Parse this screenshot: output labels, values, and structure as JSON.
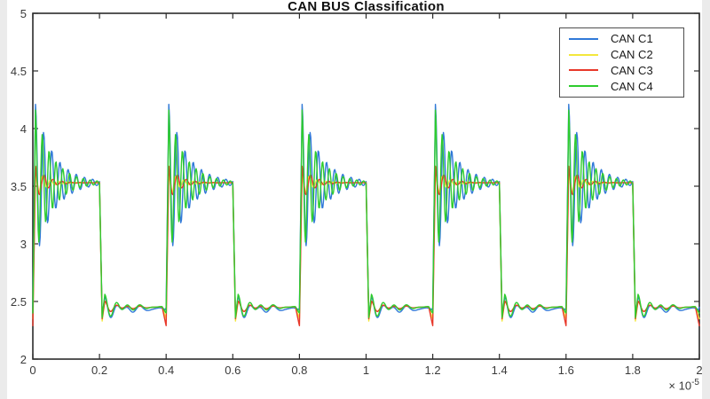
{
  "window": {
    "background": "#ffffff",
    "edge_strip_color": "#ebebeb"
  },
  "chart_data": {
    "type": "line",
    "title": "CAN BUS Classification",
    "axis_color": "#2b2b2b",
    "grid": false,
    "legend_position": "top-right",
    "x_axis": {
      "range": [
        0,
        2
      ],
      "unit": "seconds",
      "ticks": [
        "0",
        "0.2",
        "0.4",
        "0.6",
        "0.8",
        "1",
        "1.2",
        "1.4",
        "1.6",
        "1.8",
        "2"
      ],
      "tick_values": [
        0,
        0.2,
        0.4,
        0.6,
        0.8,
        1,
        1.2,
        1.4,
        1.6,
        1.8,
        2
      ],
      "unit_multiplier": {
        "times_base": "× 10",
        "exponent": "-5"
      }
    },
    "y_axis": {
      "range": [
        2,
        5
      ],
      "ticks": [
        "5",
        "4.5",
        "4",
        "3.5",
        "3",
        "2.5",
        "2"
      ],
      "tick_values": [
        5,
        4.5,
        4,
        3.5,
        3,
        2.5,
        2
      ]
    },
    "signal_model": {
      "description": "Square-wave CAN bus signal with under-damped ringing after each rising edge, small bounce after each falling edge, and a short dip just before each rising edge. Time values are in units of 1e-5 seconds.",
      "period": 0.4,
      "high_time": 0.2,
      "high_level": 3.53,
      "low_level": 2.45,
      "rise_time": 0.008,
      "fall_time": 0.008,
      "sample_step": 0.002,
      "bounce_decay": 0.05,
      "bounce_period": 0.035,
      "wiggle_decay": 0.15,
      "wiggle_period": 0.055,
      "pre_rise_dip_width": 0.012,
      "rising_edge_times": [
        0,
        0.4,
        0.8,
        1.2,
        1.6,
        2.0
      ],
      "falling_edge_times": [
        0.2,
        0.6,
        1.0,
        1.4,
        1.8
      ]
    },
    "series": [
      {
        "name": "CAN C1",
        "color": "#3079d8",
        "overshoot_peak": 4.21,
        "ring_amp": 0.68,
        "ring_tau": 0.055,
        "ring_period": 0.0245,
        "ring_phase": 0,
        "bounce_amp": 0.09,
        "fall_dip": 0.06,
        "pre_rise_dip": 0,
        "low_wiggle": 0.035,
        "low_offset": -0.015
      },
      {
        "name": "CAN C2",
        "color": "#f3e73c",
        "overshoot_peak": 3.65,
        "ring_amp": 0.12,
        "ring_tau": 0.03,
        "ring_period": 0.024,
        "ring_phase": 0.5,
        "bounce_amp": 0.05,
        "fall_dip": 0.12,
        "pre_rise_dip": 0.1,
        "low_wiggle": 0.01,
        "low_offset": 0
      },
      {
        "name": "CAN C3",
        "color": "#e8382a",
        "overshoot_peak": 3.68,
        "ring_amp": 0.15,
        "ring_tau": 0.032,
        "ring_period": 0.027,
        "ring_phase": 0.3,
        "bounce_amp": 0.05,
        "fall_dip": 0.1,
        "pre_rise_dip": 0.16,
        "low_wiggle": 0.012,
        "low_offset": 0
      },
      {
        "name": "CAN C4",
        "color": "#2ecc2e",
        "overshoot_peak": 4.16,
        "ring_amp": 0.63,
        "ring_tau": 0.05,
        "ring_period": 0.0205,
        "ring_phase": 0,
        "bounce_amp": 0.11,
        "fall_dip": 0.09,
        "pre_rise_dip": 0.05,
        "low_wiggle": 0.02,
        "low_offset": 0
      }
    ]
  }
}
